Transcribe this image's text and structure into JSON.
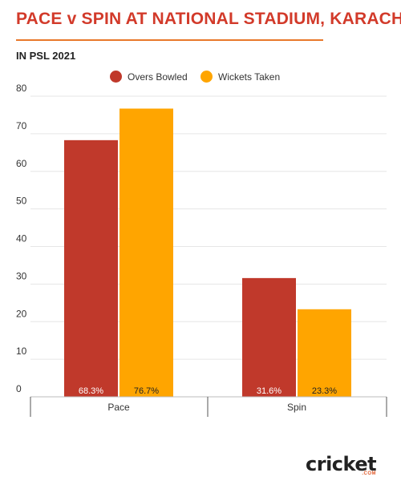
{
  "header": {
    "title": "PACE v SPIN AT NATIONAL STADIUM, KARACHI",
    "subtitle": "IN PSL 2021"
  },
  "logo": {
    "text": "cricket",
    "suffix": ".COM"
  },
  "colors": {
    "overs": "#c0392b",
    "wickets": "#ffa500",
    "title": "#d23a2a",
    "rule": "#e8782a"
  },
  "chart_data": {
    "type": "bar",
    "categories": [
      "Pace",
      "Spin"
    ],
    "series": [
      {
        "name": "Overs Bowled",
        "values": [
          68.3,
          31.6
        ],
        "labels": [
          "68.3%",
          "31.6%"
        ]
      },
      {
        "name": "Wickets Taken",
        "values": [
          76.7,
          23.3
        ],
        "labels": [
          "76.7%",
          "23.3%"
        ]
      }
    ],
    "ylim": [
      0,
      80
    ],
    "yticks": [
      "0",
      "10",
      "20",
      "30",
      "40",
      "50",
      "60",
      "70",
      "80"
    ],
    "legend_position": "top-center",
    "grid": true
  }
}
